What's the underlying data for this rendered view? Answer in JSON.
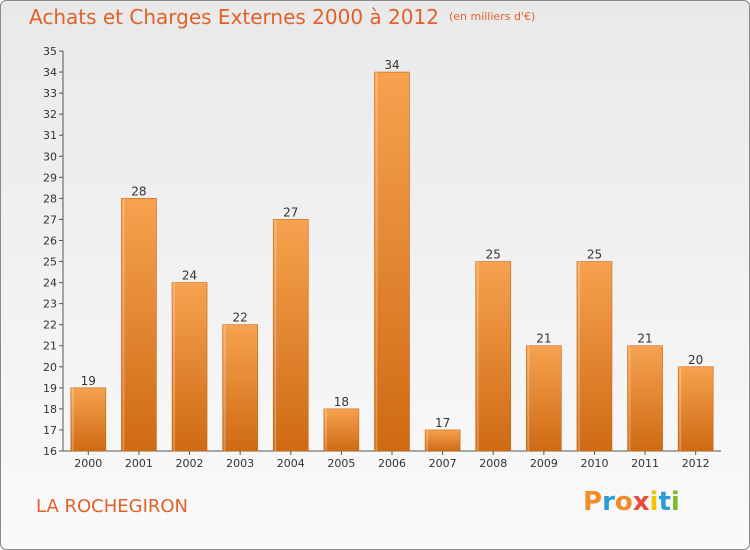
{
  "header": {
    "title": "Achats et Charges Externes 2000 à 2012",
    "subtitle": "(en milliers d'€)"
  },
  "footer": {
    "town": "LA ROCHEGIRON",
    "brand_letters": [
      "P",
      "r",
      "o",
      "x",
      "i",
      "t",
      "i"
    ],
    "brand_colors": [
      "#f28c28",
      "#2e9ad7",
      "#f28c28",
      "#e94b3c",
      "#f5c400",
      "#2e9ad7",
      "#7cbb2b"
    ]
  },
  "colors": {
    "bar_light": "#f6a24f",
    "bar_dark": "#cf6a14",
    "title": "#e0622a"
  },
  "chart_data": {
    "type": "bar",
    "title": "Achats et Charges Externes 2000 à 2012",
    "subtitle": "(en milliers d'€)",
    "categories": [
      "2000",
      "2001",
      "2002",
      "2003",
      "2004",
      "2005",
      "2006",
      "2007",
      "2008",
      "2009",
      "2010",
      "2011",
      "2012"
    ],
    "values": [
      19,
      28,
      24,
      22,
      27,
      18,
      34,
      17,
      25,
      21,
      25,
      21,
      20
    ],
    "ylim": [
      16,
      35
    ],
    "yticks": [
      16,
      17,
      18,
      19,
      20,
      21,
      22,
      23,
      24,
      25,
      26,
      27,
      28,
      29,
      30,
      31,
      32,
      33,
      34,
      35
    ],
    "grid": false,
    "xlabel": "",
    "ylabel": ""
  }
}
